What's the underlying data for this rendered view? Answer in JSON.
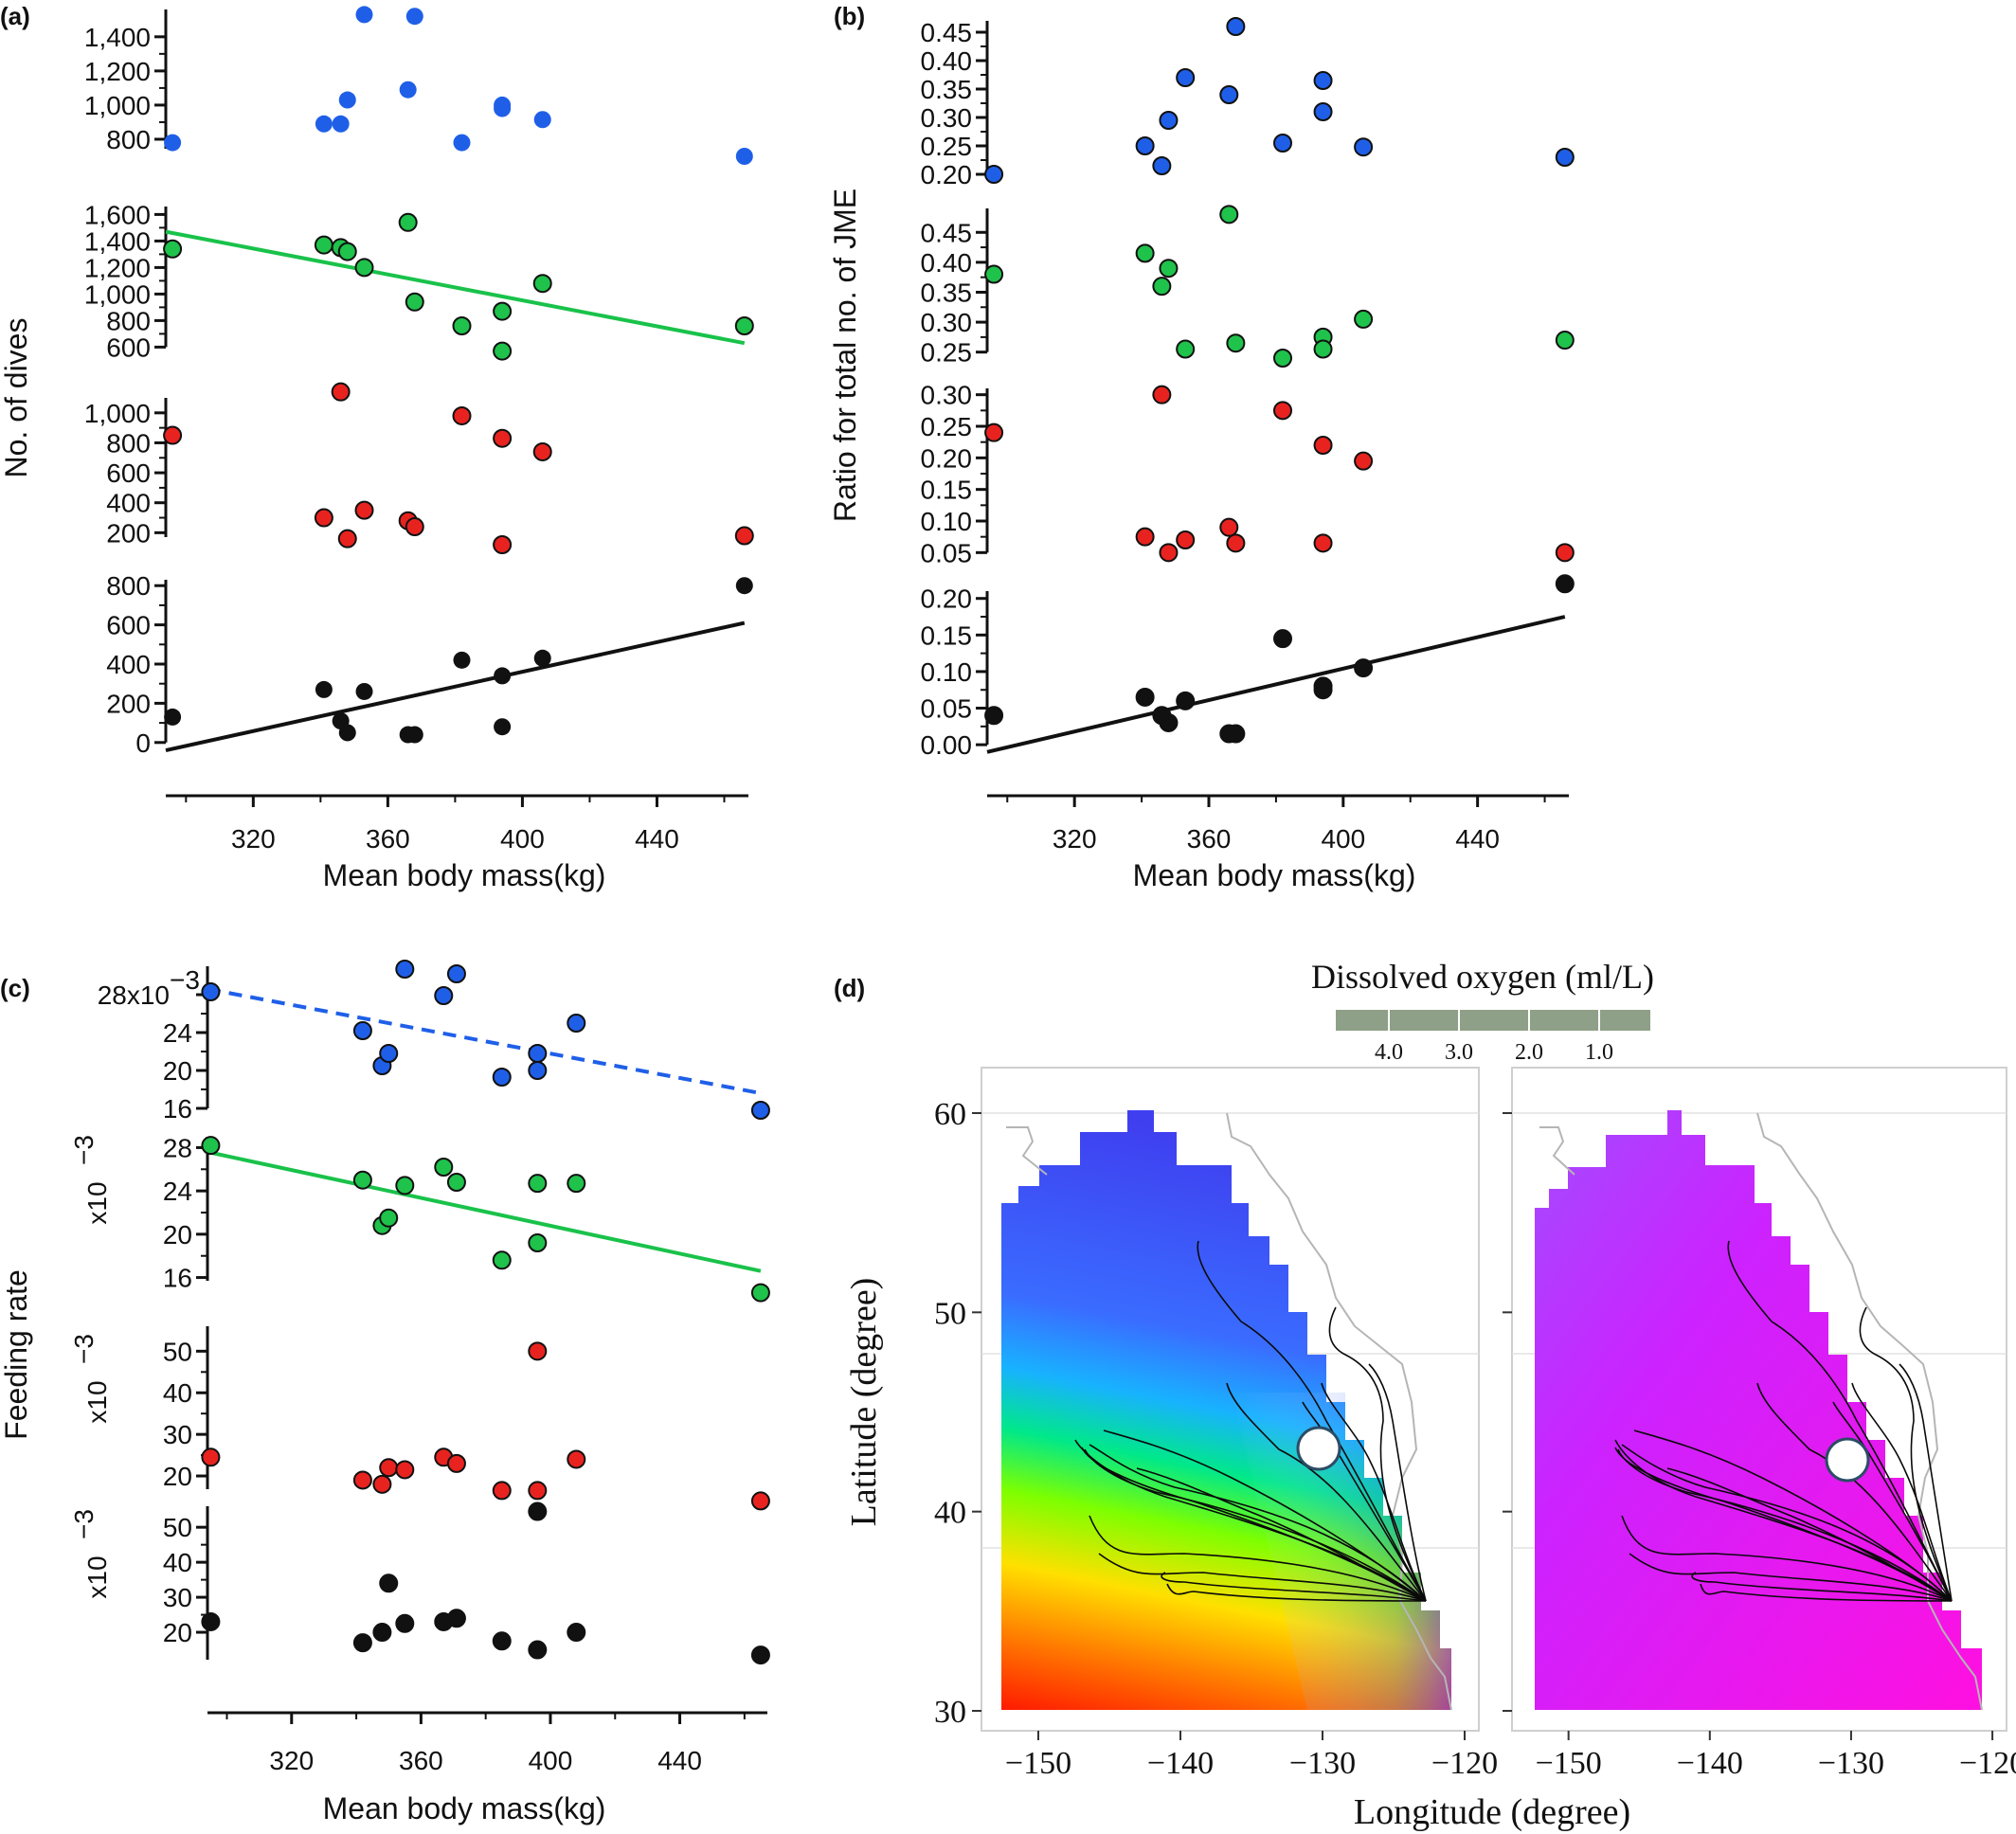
{
  "colors": {
    "blue": "#1f5fe8",
    "green": "#1fc24a",
    "red": "#e8231f",
    "black": "#111111",
    "green_line": "#19c24a",
    "axis": "#111111"
  },
  "chart_data": [
    {
      "panel": "(a)",
      "type": "scatter",
      "xlabel": "Mean body mass(kg)",
      "ylabel": "No. of dives",
      "xlim": [
        294,
        470
      ],
      "xticks": [
        "320",
        "360",
        "400",
        "440"
      ],
      "x": [
        296,
        341,
        346,
        348,
        353,
        366,
        368,
        382,
        394,
        394,
        406,
        466
      ],
      "series": [
        {
          "color": "blue",
          "ylim": [
            700,
            1560
          ],
          "yticks": [
            "800",
            "1,000",
            "1,200",
            "1,400"
          ],
          "ytick_values": [
            800,
            1000,
            1200,
            1400
          ],
          "values": [
            780,
            890,
            890,
            1030,
            1530,
            1090,
            1520,
            780,
            1000,
            980,
            915,
            700
          ],
          "fit": null
        },
        {
          "color": "green",
          "ylim": [
            560,
            1660
          ],
          "yticks": [
            "600",
            "800",
            "1,000",
            "1,200",
            "1,400",
            "1,600"
          ],
          "ytick_values": [
            600,
            800,
            1000,
            1200,
            1400,
            1600
          ],
          "values": [
            1340,
            1370,
            1350,
            1320,
            1200,
            1540,
            940,
            760,
            870,
            570,
            1080,
            760
          ],
          "fit": [
            1470,
            630
          ],
          "fit_style": "solid"
        },
        {
          "color": "red",
          "ylim": [
            120,
            1100
          ],
          "yticks": [
            "200",
            "400",
            "600",
            "800",
            "1,000"
          ],
          "ytick_values": [
            200,
            400,
            600,
            800,
            1000
          ],
          "values": [
            850,
            300,
            1140,
            160,
            350,
            280,
            240,
            980,
            830,
            120,
            740,
            180
          ],
          "fit": null
        },
        {
          "color": "black",
          "ylim": [
            -30,
            830
          ],
          "yticks": [
            "0",
            "200",
            "400",
            "600",
            "800"
          ],
          "ytick_values": [
            0,
            200,
            400,
            600,
            800
          ],
          "values": [
            130,
            270,
            110,
            50,
            260,
            40,
            40,
            420,
            340,
            80,
            430,
            800
          ],
          "fit": [
            -40,
            610
          ],
          "fit_style": "solid"
        }
      ]
    },
    {
      "panel": "(b)",
      "type": "scatter",
      "xlabel": "Mean body mass(kg)",
      "ylabel": "Ratio for total no. of JME",
      "xlim": [
        294,
        470
      ],
      "xticks": [
        "320",
        "360",
        "400",
        "440"
      ],
      "x": [
        296,
        341,
        346,
        348,
        353,
        366,
        368,
        382,
        394,
        394,
        406,
        466
      ],
      "series": [
        {
          "color": "blue",
          "ylim": [
            0.19,
            0.47
          ],
          "yticks": [
            "0.20",
            "0.25",
            "0.30",
            "0.35",
            "0.40",
            "0.45"
          ],
          "ytick_values": [
            0.2,
            0.25,
            0.3,
            0.35,
            0.4,
            0.45
          ],
          "values": [
            0.2,
            0.25,
            0.215,
            0.295,
            0.37,
            0.34,
            0.46,
            0.255,
            0.31,
            0.365,
            0.248,
            0.23
          ],
          "fit": null
        },
        {
          "color": "green",
          "ylim": [
            0.24,
            0.49
          ],
          "yticks": [
            "0.25",
            "0.30",
            "0.35",
            "0.40",
            "0.45"
          ],
          "ytick_values": [
            0.25,
            0.3,
            0.35,
            0.4,
            0.45
          ],
          "values": [
            0.38,
            0.415,
            0.36,
            0.39,
            0.255,
            0.48,
            0.265,
            0.24,
            0.275,
            0.255,
            0.305,
            0.27
          ],
          "fit": null
        },
        {
          "color": "red",
          "ylim": [
            0.04,
            0.31
          ],
          "yticks": [
            "0.05",
            "0.10",
            "0.15",
            "0.20",
            "0.25",
            "0.30"
          ],
          "ytick_values": [
            0.05,
            0.1,
            0.15,
            0.2,
            0.25,
            0.3
          ],
          "values": [
            0.24,
            0.075,
            0.3,
            0.05,
            0.07,
            0.09,
            0.065,
            0.275,
            0.22,
            0.065,
            0.195,
            0.05
          ],
          "fit": null
        },
        {
          "color": "black",
          "ylim": [
            -0.005,
            0.21
          ],
          "yticks": [
            "0.00",
            "0.05",
            "0.10",
            "0.15",
            "0.20"
          ],
          "ytick_values": [
            0.0,
            0.05,
            0.1,
            0.15,
            0.2
          ],
          "values": [
            0.04,
            0.065,
            0.04,
            0.03,
            0.06,
            0.015,
            0.015,
            0.145,
            0.08,
            0.075,
            0.105,
            0.22
          ],
          "fit": [
            -0.01,
            0.175
          ],
          "fit_style": "solid"
        }
      ]
    },
    {
      "panel": "(c)",
      "type": "scatter",
      "xlabel": "Mean body mass(kg)",
      "ylabel": "Feeding rate",
      "xlim": [
        294,
        470
      ],
      "xticks": [
        "320",
        "360",
        "400",
        "440"
      ],
      "x": [
        295,
        342,
        348,
        350,
        355,
        367,
        371,
        385,
        396,
        396,
        408,
        465
      ],
      "series": [
        {
          "color": "blue",
          "ylim": [
            16,
            31
          ],
          "yticks": [
            "16",
            "20",
            "24",
            "28x10"
          ],
          "ytick_values": [
            16,
            20,
            24,
            28
          ],
          "exp_on_tick": "28x10",
          "exp": "−3",
          "values": [
            28.3,
            24.2,
            20.5,
            21.8,
            30.7,
            27.9,
            30.2,
            19.3,
            21.8,
            20.0,
            25.0,
            15.8
          ],
          "fit": [
            28.6,
            17.6
          ],
          "fit_style": "dashed",
          "fit_color": "blue"
        },
        {
          "color": "green",
          "ylim": [
            15,
            29
          ],
          "yticks": [
            "16",
            "20",
            "24",
            "28"
          ],
          "ytick_values": [
            16,
            20,
            24,
            28
          ],
          "side_label": "x10",
          "exp": "−3",
          "values": [
            28.2,
            25.0,
            20.8,
            21.5,
            24.5,
            26.2,
            24.8,
            17.6,
            19.2,
            24.7,
            24.7,
            14.6
          ],
          "fit": [
            27.6,
            16.6
          ],
          "fit_style": "solid",
          "fit_color": "green_line"
        },
        {
          "color": "red",
          "ylim": [
            15,
            56
          ],
          "yticks": [
            "20",
            "30",
            "40",
            "50"
          ],
          "ytick_values": [
            20,
            30,
            40,
            50
          ],
          "side_label": "x10",
          "exp": "−3",
          "values": [
            24.5,
            19.0,
            18.0,
            22.0,
            21.5,
            24.5,
            23.0,
            16.5,
            16.5,
            50.0,
            24.0,
            14.0
          ],
          "fit": null
        },
        {
          "color": "black",
          "ylim": [
            10,
            56
          ],
          "yticks": [
            "20",
            "30",
            "40",
            "50"
          ],
          "ytick_values": [
            20,
            30,
            40,
            50
          ],
          "side_label": "x10",
          "exp": "−3",
          "values": [
            23.0,
            17.0,
            20.0,
            34.0,
            22.5,
            23.0,
            24.0,
            17.5,
            15.0,
            54.5,
            20.0,
            13.5
          ],
          "fit": null
        }
      ]
    },
    {
      "panel": "(d)",
      "type": "heatmap",
      "colorbar_title": "Dissolved oxygen (ml/L)",
      "colorbar_ticks": [
        "4.0",
        "3.0",
        "2.0",
        "1.0"
      ],
      "xlabel": "Longitude (degree)",
      "ylabel": "Latitude (degree)",
      "xlim": [
        -154,
        -119
      ],
      "ylim": [
        30,
        62
      ],
      "xticks": [
        "−150",
        "−140",
        "−130",
        "−120"
      ],
      "xtick_values": [
        -150,
        -140,
        -130,
        -120
      ],
      "yticks": [
        "30",
        "40",
        "50",
        "60"
      ],
      "ytick_values": [
        30,
        40,
        50,
        60
      ],
      "marker_lon_lat": [
        [
          -129.5,
          44.8
        ],
        [
          -130,
          44.4
        ]
      ]
    }
  ]
}
